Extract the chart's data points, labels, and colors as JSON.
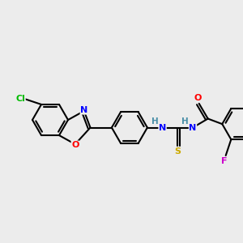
{
  "bg_color": "#ececec",
  "bond_color": "#000000",
  "atom_colors": {
    "Cl": "#00bb00",
    "N": "#0000ff",
    "O": "#ff0000",
    "S": "#ccaa00",
    "F": "#cc00cc",
    "H": "#4a8fa8",
    "C": "#000000"
  }
}
